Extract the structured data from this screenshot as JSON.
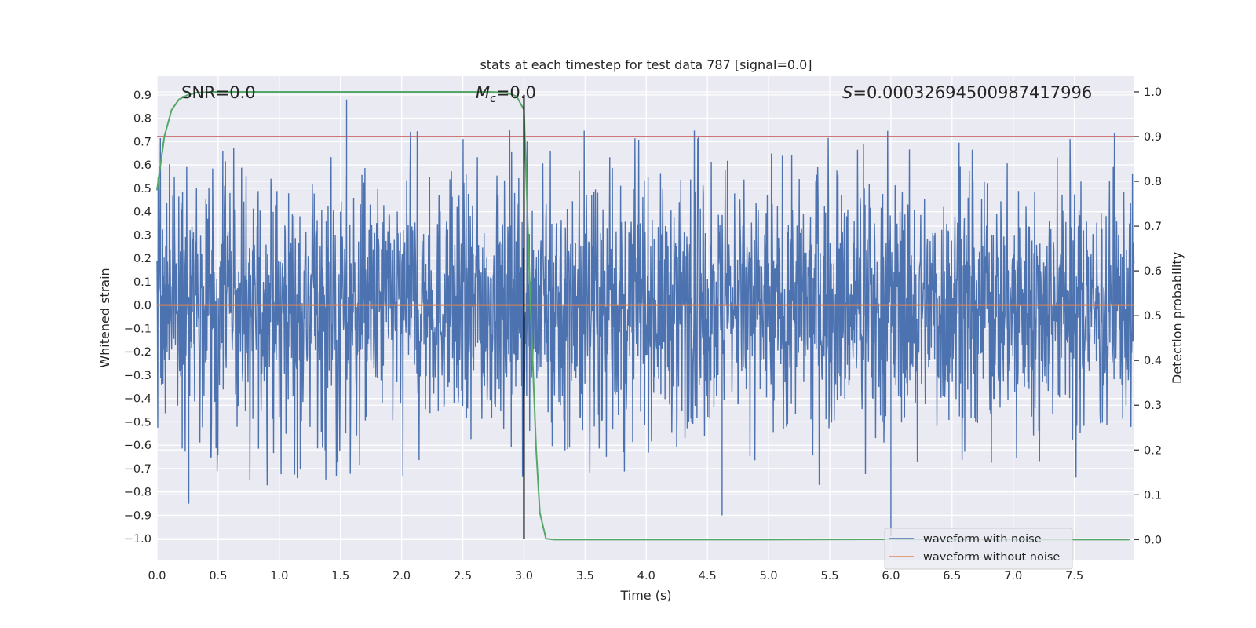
{
  "chart_data": {
    "type": "line",
    "title": "stats at each timestep for test data 787 [signal=0.0]",
    "xlabel": "Time (s)",
    "ylabel": "Whitened strain",
    "y2label": "Detection probability",
    "xlim": [
      0.0,
      7.99
    ],
    "ylim": [
      -1.09,
      0.98
    ],
    "y2lim": [
      -0.045,
      1.035
    ],
    "xticks": [
      "0.0",
      "0.5",
      "1.0",
      "1.5",
      "2.0",
      "2.5",
      "3.0",
      "3.5",
      "4.0",
      "4.5",
      "5.0",
      "5.5",
      "6.0",
      "6.5",
      "7.0",
      "7.5"
    ],
    "yticks": [
      "0.9",
      "0.8",
      "0.7",
      "0.6",
      "0.5",
      "0.4",
      "0.3",
      "0.2",
      "0.1",
      "0.0",
      "−0.1",
      "−0.2",
      "−0.3",
      "−0.4",
      "−0.5",
      "−0.6",
      "−0.7",
      "−0.8",
      "−0.9",
      "−1.0"
    ],
    "y2ticks": [
      "1.0",
      "0.9",
      "0.8",
      "0.7",
      "0.6",
      "0.5",
      "0.4",
      "0.3",
      "0.2",
      "0.1",
      "0.0"
    ],
    "annotations": {
      "snr": "SNR=0.0",
      "mc_symbol": "M",
      "mc_sub": "c",
      "mc_value": "=0.0",
      "s_symbol": "S",
      "s_value": "=0.00032694500987417996"
    },
    "grid": true,
    "legend_position": "lower-right",
    "series": [
      {
        "name": "waveform with noise",
        "color": "#4c72b0",
        "axis": "left",
        "note": "dense noisy strain, envelope approx. ±0.5 with spikes to 0.88 and −1.0",
        "peaks": [
          {
            "x": 1.55,
            "y": 0.88
          },
          {
            "x": 0.26,
            "y": -0.85
          },
          {
            "x": 6.0,
            "y": -0.99
          },
          {
            "x": 4.62,
            "y": -0.9
          }
        ]
      },
      {
        "name": "waveform without noise",
        "color": "#dd8452",
        "axis": "left",
        "x": [
          0.0,
          7.99
        ],
        "y": [
          0.0,
          0.0
        ]
      },
      {
        "color": "#55a868",
        "axis": "right",
        "x": [
          0.0,
          0.06,
          0.12,
          0.18,
          0.25,
          0.32,
          0.45,
          1.0,
          2.0,
          2.7,
          2.85,
          2.94,
          3.0,
          3.05,
          3.1,
          3.13,
          3.18,
          3.25,
          3.5,
          5.0,
          6.0,
          7.0,
          7.95
        ],
        "y": [
          0.78,
          0.9,
          0.96,
          0.983,
          0.993,
          0.998,
          1.0,
          1.0,
          1.0,
          1.0,
          0.999,
          0.99,
          0.96,
          0.55,
          0.2,
          0.06,
          0.002,
          0.0,
          0.0,
          0.0,
          0.0005,
          0.0,
          0.0
        ]
      },
      {
        "color": "#c44e52",
        "axis": "right",
        "type": "hline",
        "y": 0.9
      },
      {
        "color": "#000000",
        "axis": "left",
        "type": "vline",
        "x": 3.0,
        "y": [
          -1.0,
          0.9
        ]
      }
    ]
  }
}
